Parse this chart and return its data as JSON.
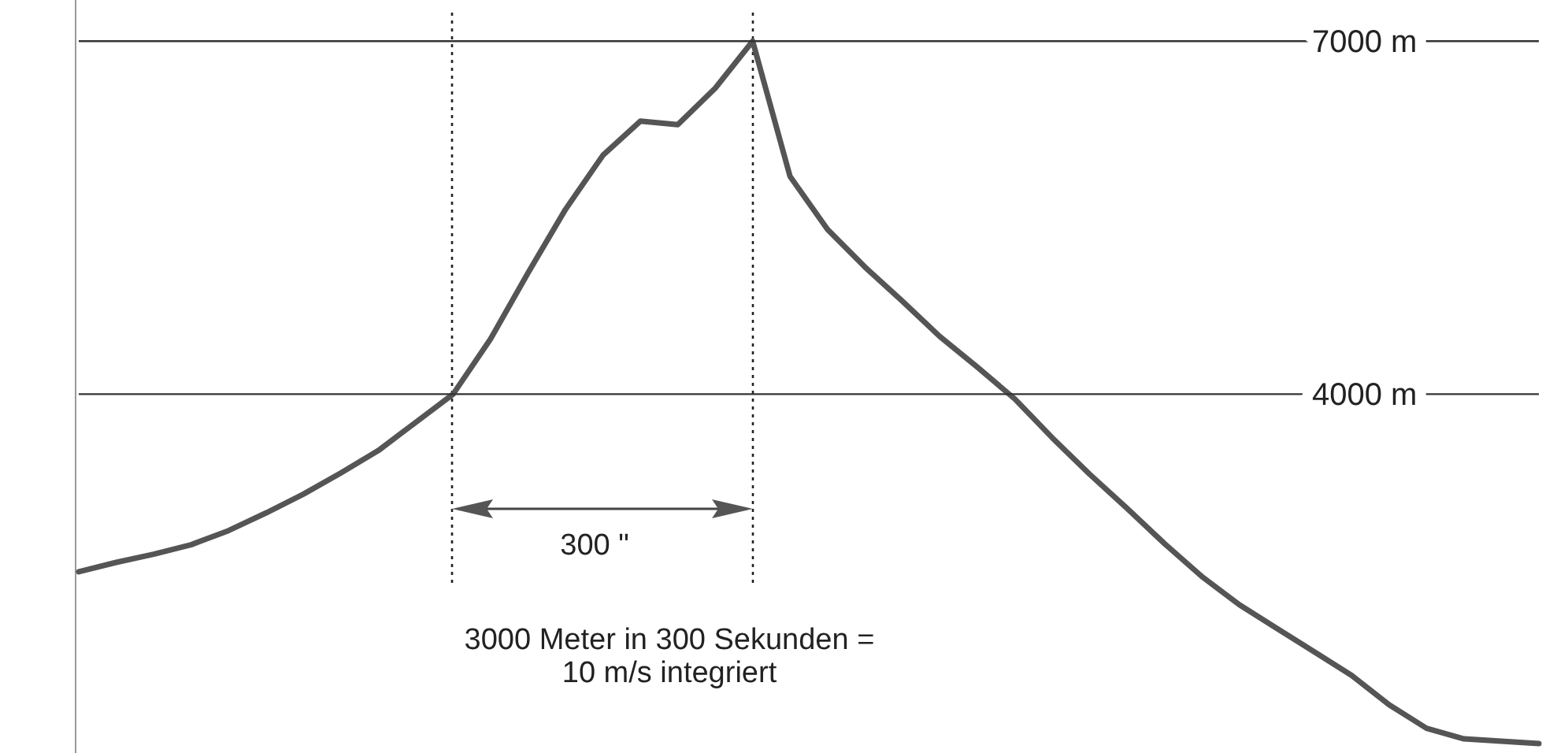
{
  "chart_data": {
    "type": "line",
    "categories": [
      null,
      null,
      null,
      null,
      null,
      null,
      null,
      null,
      null,
      null,
      null,
      null,
      null,
      null,
      null,
      null,
      null,
      null,
      null,
      null,
      null,
      null,
      null,
      null,
      null,
      null,
      null,
      null,
      null,
      null,
      null,
      null,
      null,
      null,
      null,
      null,
      null,
      null,
      null,
      null
    ],
    "series": [
      {
        "color": "#555555",
        "values": [
          2490,
          2570,
          2640,
          2720,
          2840,
          2990,
          3150,
          3330,
          3520,
          3760,
          4000,
          4470,
          5030,
          5570,
          6030,
          6320,
          6290,
          6600,
          7000,
          5850,
          5400,
          5080,
          4790,
          4490,
          4230,
          3960,
          3630,
          3320,
          3030,
          2730,
          2450,
          2210,
          2010,
          1810,
          1610,
          1360,
          1160,
          1070,
          1050,
          1030
        ]
      }
    ],
    "ylim": [
      950,
      7350
    ],
    "yticks": [
      {
        "value": 4000,
        "label": "4000 m"
      },
      {
        "value": 7000,
        "label": "7000 m"
      }
    ],
    "grid": "y",
    "tick_labels": "y",
    "line_style": "solid",
    "annotations": [
      "300 \"",
      "3000 Meter in 300 Sekunden =\n10 m/s integriert"
    ]
  }
}
